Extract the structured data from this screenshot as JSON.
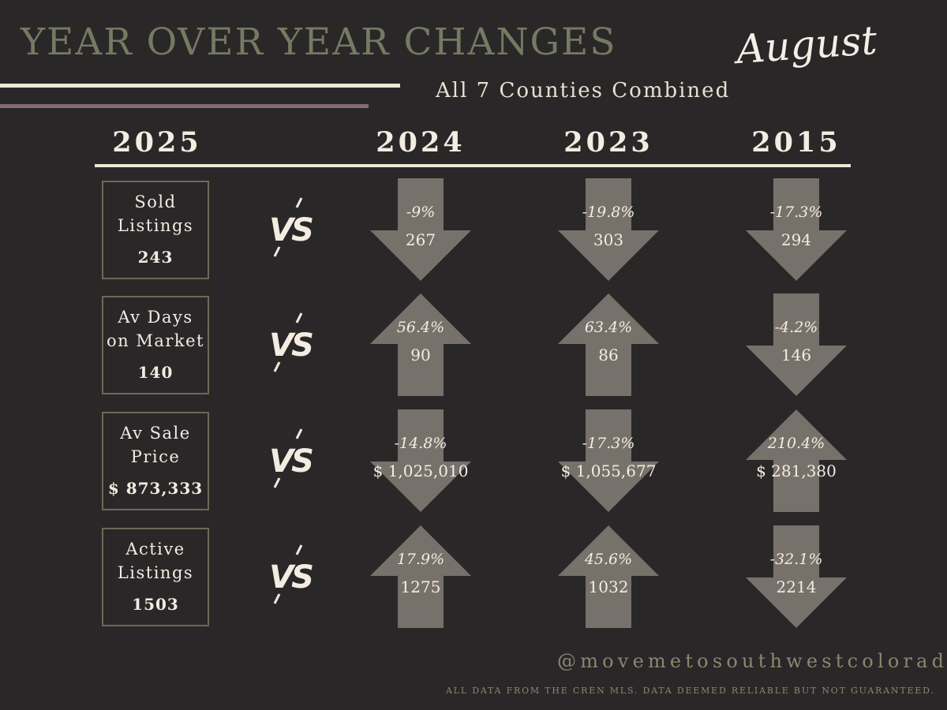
{
  "header": {
    "title": "YEAR OVER YEAR CHANGES",
    "month": "August",
    "subtitle": "All 7 Counties Combined"
  },
  "columns": {
    "current_year": "2025",
    "compare_years": [
      "2024",
      "2023",
      "2015"
    ]
  },
  "vs_label": "VS",
  "rows": [
    {
      "label_lines": [
        "Sold",
        "Listings"
      ],
      "value": "243",
      "comparisons": [
        {
          "pct": "-9%",
          "value": "267",
          "direction": "down"
        },
        {
          "pct": "-19.8%",
          "value": "303",
          "direction": "down"
        },
        {
          "pct": "-17.3%",
          "value": "294",
          "direction": "down"
        }
      ]
    },
    {
      "label_lines": [
        "Av Days",
        "on Market"
      ],
      "value": "140",
      "comparisons": [
        {
          "pct": "56.4%",
          "value": "90",
          "direction": "up"
        },
        {
          "pct": "63.4%",
          "value": "86",
          "direction": "up"
        },
        {
          "pct": "-4.2%",
          "value": "146",
          "direction": "down"
        }
      ]
    },
    {
      "label_lines": [
        "Av Sale",
        "Price"
      ],
      "value": "$ 873,333",
      "comparisons": [
        {
          "pct": "-14.8%",
          "value": "$ 1,025,010",
          "direction": "down"
        },
        {
          "pct": "-17.3%",
          "value": "$ 1,055,677",
          "direction": "down"
        },
        {
          "pct": "210.4%",
          "value": "$ 281,380",
          "direction": "up"
        }
      ]
    },
    {
      "label_lines": [
        "Active",
        "Listings"
      ],
      "value": "1503",
      "comparisons": [
        {
          "pct": "17.9%",
          "value": "1275",
          "direction": "up"
        },
        {
          "pct": "45.6%",
          "value": "1032",
          "direction": "up"
        },
        {
          "pct": "-32.1%",
          "value": "2214",
          "direction": "down"
        }
      ]
    }
  ],
  "footer": {
    "handle": "@movemetosouthwestcolorado",
    "disclaimer": "ALL DATA FROM THE CREN MLS. DATA DEEMED RELIABLE BUT NOT GUARANTEED."
  },
  "colors": {
    "background": "#2a2729",
    "title": "#757a62",
    "arrow": "#77716b",
    "text": "#f2ece1",
    "box_border": "#6c6a56",
    "line_cream": "#efe7d7",
    "line_mauve": "#866b72"
  }
}
